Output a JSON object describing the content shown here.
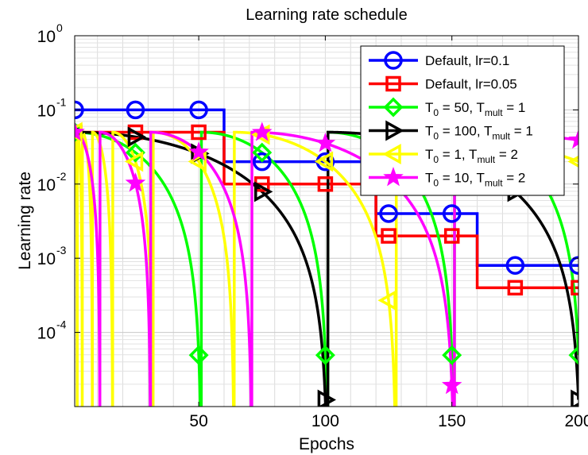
{
  "chart_data": {
    "type": "line",
    "title": "Learning rate schedule",
    "xlabel": "Epochs",
    "ylabel": "Learning rate",
    "xlim": [
      1,
      200
    ],
    "ylim": [
      1e-05,
      1
    ],
    "yscale": "log",
    "grid": true,
    "legend_position": "top-right",
    "x_ticks": [
      50,
      100,
      150,
      200
    ],
    "y_ticks": [
      {
        "value": 0.0001,
        "base": "10",
        "exp": "-4"
      },
      {
        "value": 0.001,
        "base": "10",
        "exp": "-3"
      },
      {
        "value": 0.01,
        "base": "10",
        "exp": "-2"
      },
      {
        "value": 0.1,
        "base": "10",
        "exp": "-1"
      },
      {
        "value": 1,
        "base": "10",
        "exp": "0"
      }
    ],
    "series": [
      {
        "name": "Default, lr=0.1",
        "legend_main": "Default, lr=0.1",
        "legend_sub": "",
        "legend_tail": "",
        "color": "#0000ff",
        "marker": "circle",
        "kind": "step",
        "steps": [
          [
            1,
            60,
            0.1
          ],
          [
            60,
            120,
            0.02
          ],
          [
            120,
            160,
            0.004
          ],
          [
            160,
            200,
            0.0008
          ]
        ],
        "markers_x": [
          1,
          25,
          50,
          75,
          100,
          125,
          150,
          175,
          200
        ]
      },
      {
        "name": "Default, lr=0.05",
        "legend_main": "Default, lr=0.05",
        "legend_sub": "",
        "legend_tail": "",
        "color": "#ff0000",
        "marker": "square",
        "kind": "step",
        "steps": [
          [
            1,
            60,
            0.05
          ],
          [
            60,
            120,
            0.01
          ],
          [
            120,
            160,
            0.002
          ],
          [
            160,
            200,
            0.0004
          ]
        ],
        "markers_x": [
          1,
          25,
          50,
          75,
          100,
          125,
          150,
          175,
          200
        ]
      },
      {
        "name": "T0 = 50, Tmult = 1",
        "legend_main": "T",
        "legend_sub": "0",
        "legend_tail": " = 50, T",
        "legend_sub2": "mult",
        "legend_tail2": " = 1",
        "color": "#00ff00",
        "marker": "diamond",
        "kind": "cosine",
        "lr": 0.05,
        "T0": 50,
        "Tmult": 1,
        "markers_x": [
          1,
          25,
          50,
          75,
          100,
          125,
          150,
          175,
          200
        ]
      },
      {
        "name": "T0 = 100, Tmult = 1",
        "legend_main": "T",
        "legend_sub": "0",
        "legend_tail": " = 100, T",
        "legend_sub2": "mult",
        "legend_tail2": " = 1",
        "color": "#000000",
        "marker": "triangle-right",
        "kind": "cosine",
        "lr": 0.05,
        "T0": 100,
        "Tmult": 1,
        "markers_x": [
          1,
          25,
          50,
          75,
          100,
          125,
          150,
          175,
          200
        ]
      },
      {
        "name": "T0 = 1, Tmult = 2",
        "legend_main": "T",
        "legend_sub": "0",
        "legend_tail": " = 1, T",
        "legend_sub2": "mult",
        "legend_tail2": " = 2",
        "color": "#ffff00",
        "marker": "triangle-left",
        "kind": "cosine",
        "lr": 0.05,
        "T0": 1,
        "Tmult": 2,
        "markers_x": [
          1,
          25,
          50,
          75,
          100,
          125,
          150,
          175,
          200
        ]
      },
      {
        "name": "T0 = 10, Tmult = 2",
        "legend_main": "T",
        "legend_sub": "0",
        "legend_tail": " = 10, T",
        "legend_sub2": "mult",
        "legend_tail2": " = 2",
        "color": "#ff00ff",
        "marker": "star",
        "kind": "cosine",
        "lr": 0.05,
        "T0": 10,
        "Tmult": 2,
        "markers_x": [
          1,
          25,
          50,
          75,
          100,
          125,
          150,
          175,
          200
        ]
      }
    ]
  }
}
